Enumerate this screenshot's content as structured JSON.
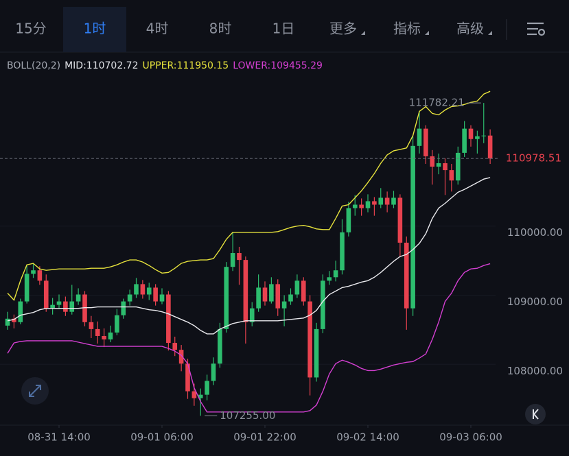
{
  "tabs": [
    "15分",
    "1时",
    "4时",
    "8时",
    "1日",
    "更多",
    "指标",
    "高级"
  ],
  "active_tab": 1,
  "chart_data": {
    "type": "candlestick",
    "indicator": {
      "name": "BOLL(20,2)",
      "mid": "MID:110702.72",
      "upper": "UPPER:111950.15",
      "lower": "LOWER:109455.29"
    },
    "categories": [
      null,
      null,
      null,
      null,
      null,
      null,
      null,
      null,
      "08-31 14:00",
      null,
      null,
      null,
      null,
      null,
      null,
      null,
      null,
      null,
      null,
      null,
      null,
      null,
      null,
      null,
      "09-01 06:00",
      null,
      null,
      null,
      null,
      null,
      null,
      null,
      null,
      null,
      null,
      null,
      null,
      null,
      null,
      null,
      "09-01 22:00",
      null,
      null,
      null,
      null,
      null,
      null,
      null,
      null,
      null,
      null,
      null,
      null,
      null,
      null,
      null,
      "09-02 14:00",
      null,
      null,
      null,
      null,
      null,
      null,
      null,
      null,
      null,
      null,
      null,
      null,
      null,
      null,
      null,
      "09-03 06:00",
      null,
      null,
      null
    ],
    "candles": [
      [
        108560,
        108760,
        108500,
        108660
      ],
      [
        108660,
        108720,
        108520,
        108610
      ],
      [
        108610,
        108950,
        108580,
        108910
      ],
      [
        108910,
        109430,
        108880,
        109310
      ],
      [
        109310,
        109450,
        109250,
        109360
      ],
      [
        109360,
        109420,
        109150,
        109210
      ],
      [
        109210,
        109300,
        108760,
        108810
      ],
      [
        108810,
        108960,
        108720,
        108860
      ],
      [
        108860,
        109010,
        108800,
        108910
      ],
      [
        108910,
        108980,
        108700,
        108760
      ],
      [
        108760,
        109150,
        108720,
        108910
      ],
      [
        108910,
        109100,
        108860,
        109010
      ],
      [
        109010,
        109060,
        108550,
        108610
      ],
      [
        108610,
        108700,
        108380,
        108510
      ],
      [
        108510,
        108620,
        108300,
        108410
      ],
      [
        108410,
        108520,
        108250,
        108360
      ],
      [
        108360,
        108560,
        108320,
        108460
      ],
      [
        108460,
        108800,
        108420,
        108710
      ],
      [
        108710,
        108950,
        108660,
        108910
      ],
      [
        108910,
        109080,
        108850,
        109010
      ],
      [
        109010,
        109250,
        108960,
        109160
      ],
      [
        109160,
        109220,
        108950,
        109010
      ],
      [
        109010,
        109180,
        108930,
        109110
      ],
      [
        109110,
        109160,
        108850,
        108910
      ],
      [
        108910,
        109100,
        108870,
        109010
      ],
      [
        109010,
        109060,
        108200,
        108310
      ],
      [
        108310,
        108400,
        108120,
        108210
      ],
      [
        108210,
        108280,
        107900,
        108010
      ],
      [
        108010,
        108080,
        107500,
        107610
      ],
      [
        107610,
        107720,
        107400,
        107510
      ],
      [
        107510,
        107650,
        107255,
        107560
      ],
      [
        107560,
        107850,
        107480,
        107760
      ],
      [
        107760,
        108100,
        107700,
        108010
      ],
      [
        108010,
        108600,
        107950,
        108510
      ],
      [
        108510,
        109480,
        108460,
        109410
      ],
      [
        109410,
        109910,
        109350,
        109610
      ],
      [
        109610,
        109700,
        109150,
        109510
      ],
      [
        109510,
        109560,
        108300,
        108610
      ],
      [
        108610,
        108900,
        108550,
        108810
      ],
      [
        108810,
        109300,
        108760,
        109110
      ],
      [
        109110,
        109200,
        108850,
        108910
      ],
      [
        108910,
        109260,
        108880,
        109160
      ],
      [
        109160,
        109230,
        108700,
        108810
      ],
      [
        108810,
        109000,
        108550,
        108910
      ],
      [
        108910,
        109100,
        108860,
        109010
      ],
      [
        109010,
        109300,
        108960,
        109210
      ],
      [
        109210,
        109260,
        108850,
        108910
      ],
      [
        108910,
        109000,
        107550,
        107810
      ],
      [
        107810,
        108600,
        107750,
        108510
      ],
      [
        108510,
        109300,
        108450,
        109210
      ],
      [
        109210,
        109350,
        109150,
        109260
      ],
      [
        109260,
        109500,
        109200,
        109360
      ],
      [
        109360,
        110100,
        109300,
        109910
      ],
      [
        109910,
        110350,
        109850,
        110260
      ],
      [
        110260,
        110450,
        110150,
        110310
      ],
      [
        110310,
        110400,
        110150,
        110260
      ],
      [
        110260,
        110460,
        110200,
        110360
      ],
      [
        110360,
        110420,
        110150,
        110310
      ],
      [
        110310,
        110550,
        110260,
        110410
      ],
      [
        110410,
        110500,
        110200,
        110310
      ],
      [
        110310,
        110510,
        110260,
        110410
      ],
      [
        110410,
        110460,
        109550,
        109760
      ],
      [
        109760,
        109850,
        108500,
        108810
      ],
      [
        108810,
        111300,
        108700,
        111160
      ],
      [
        111160,
        111650,
        111050,
        111410
      ],
      [
        111410,
        111460,
        110900,
        111010
      ],
      [
        111010,
        111100,
        110600,
        110860
      ],
      [
        110860,
        111050,
        110750,
        110910
      ],
      [
        110910,
        110980,
        110450,
        110810
      ],
      [
        110810,
        110900,
        110500,
        110660
      ],
      [
        110660,
        111150,
        110600,
        111060
      ],
      [
        111060,
        111520,
        111000,
        111410
      ],
      [
        111410,
        111460,
        111150,
        111260
      ],
      [
        111260,
        111380,
        111050,
        111300
      ],
      [
        111300,
        111782.21,
        111200,
        111310
      ],
      [
        111310,
        111400,
        110900,
        110978.51
      ]
    ],
    "up_color": "#2dbd6e",
    "down_color": "#e8424f",
    "series": [
      {
        "color": "#e6e23c",
        "values": [
          109030,
          108930,
          109210,
          109440,
          109460,
          109380,
          109360,
          109370,
          109380,
          109380,
          109380,
          109380,
          109380,
          109390,
          109390,
          109390,
          109410,
          109440,
          109480,
          109510,
          109510,
          109480,
          109430,
          109370,
          109320,
          109330,
          109390,
          109460,
          109490,
          109500,
          109510,
          109510,
          109530,
          109660,
          109810,
          109910,
          109910,
          109910,
          109910,
          109910,
          109910,
          109910,
          109920,
          109950,
          109980,
          110000,
          110010,
          109990,
          109960,
          109950,
          109950,
          110110,
          110290,
          110310,
          110410,
          110510,
          110630,
          110760,
          110910,
          111030,
          111090,
          111110,
          111130,
          111310,
          111660,
          111730,
          111630,
          111610,
          111680,
          111730,
          111740,
          111760,
          111790,
          111810,
          111910,
          111950.15
        ]
      },
      {
        "color": "#e8e8ec",
        "values": [
          108630,
          108650,
          108710,
          108730,
          108750,
          108790,
          108810,
          108810,
          108810,
          108810,
          108810,
          108810,
          108820,
          108820,
          108830,
          108830,
          108830,
          108830,
          108830,
          108830,
          108830,
          108810,
          108790,
          108780,
          108760,
          108730,
          108690,
          108650,
          108610,
          108560,
          108490,
          108440,
          108440,
          108510,
          108550,
          108590,
          108610,
          108630,
          108630,
          108630,
          108630,
          108630,
          108630,
          108640,
          108650,
          108660,
          108670,
          108710,
          108780,
          108910,
          109010,
          109060,
          109110,
          109130,
          109160,
          109190,
          109210,
          109260,
          109330,
          109410,
          109490,
          109560,
          109590,
          109660,
          109750,
          109890,
          110110,
          110260,
          110330,
          110410,
          110490,
          110530,
          110580,
          110630,
          110680,
          110702.72
        ]
      },
      {
        "color": "#d33fd1",
        "values": [
          108160,
          108310,
          108330,
          108340,
          108340,
          108340,
          108340,
          108340,
          108340,
          108340,
          108340,
          108320,
          108300,
          108280,
          108260,
          108260,
          108260,
          108260,
          108260,
          108260,
          108260,
          108260,
          108260,
          108260,
          108260,
          108230,
          108190,
          108130,
          108010,
          107660,
          107460,
          107310,
          107310,
          107310,
          107310,
          107310,
          107310,
          107310,
          107310,
          107310,
          107310,
          107310,
          107310,
          107310,
          107310,
          107310,
          107310,
          107330,
          107410,
          107610,
          107860,
          108010,
          108060,
          108030,
          107990,
          107940,
          107910,
          107910,
          107930,
          107960,
          107990,
          108010,
          108030,
          108040,
          108090,
          108150,
          108360,
          108610,
          108910,
          109030,
          109210,
          109330,
          109380,
          109390,
          109430,
          109455.29
        ]
      }
    ],
    "ylim": [
      107100,
      112200
    ],
    "yticks": [
      {
        "value": 108000,
        "label": "108000.00"
      },
      {
        "value": 109000,
        "label": "109000.00"
      },
      {
        "value": 110000,
        "label": "110000.00"
      }
    ],
    "max_label": "111782.21",
    "min_label": "107255.00"
  }
}
